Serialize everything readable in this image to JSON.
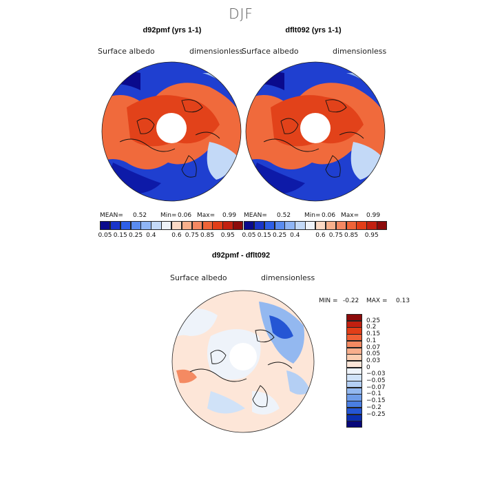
{
  "season_title": "DJF",
  "panels": [
    {
      "title": "d92pmf (yrs 1-1)",
      "variable": "Surface albedo",
      "units": "dimensionless",
      "stats": {
        "mean_label": "MEAN=",
        "mean": "0.52",
        "min_label": "Min=",
        "min": "0.06",
        "max_label": "Max=",
        "max": "0.99"
      }
    },
    {
      "title": "dflt092 (yrs 1-1)",
      "variable": "Surface albedo",
      "units": "dimensionless",
      "stats": {
        "mean_label": "MEAN=",
        "mean": "0.52",
        "min_label": "Min=",
        "min": "0.06",
        "max_label": "Max=",
        "max": "0.99"
      }
    }
  ],
  "abs_colorbar": {
    "colors": [
      "#0a0a8c",
      "#1a35c8",
      "#2e5fe6",
      "#5a8cf0",
      "#8fb5f5",
      "#c3d9f7",
      "#eef2f8",
      "#fbd9c4",
      "#f8b08c",
      "#f48862",
      "#ef6438",
      "#e23e18",
      "#c22010",
      "#8c0b0b"
    ],
    "tick_labels": [
      "0.05",
      "0.15",
      "0.25",
      "0.4",
      "0.6",
      "0.75",
      "0.85",
      "0.95"
    ]
  },
  "difference_panel": {
    "title": "d92pmf - dflt092",
    "variable": "Surface albedo",
    "units": "dimensionless",
    "stats": {
      "min_label": "MIN =",
      "min": "-0.22",
      "max_label": "MAX =",
      "max": "0.13"
    }
  },
  "diff_colorbar": {
    "colors_top_to_bottom": [
      "#8c0b0b",
      "#c22010",
      "#e23e18",
      "#f06036",
      "#f48a62",
      "#f8ae8c",
      "#fbcdb0",
      "#fde6d8",
      "#eef3fa",
      "#d0e2f8",
      "#b4cff4",
      "#93b8f0",
      "#6f9de9",
      "#4a7ee2",
      "#2556d4",
      "#0b2fb0",
      "#07077a"
    ],
    "labels_top_to_bottom": [
      "0.25",
      "0.2",
      "0.15",
      "0.1",
      "0.07",
      "0.05",
      "0.03",
      "0",
      "−0.03",
      "−0.05",
      "−0.07",
      "−0.1",
      "−0.15",
      "−0.2",
      "−0.25"
    ]
  }
}
